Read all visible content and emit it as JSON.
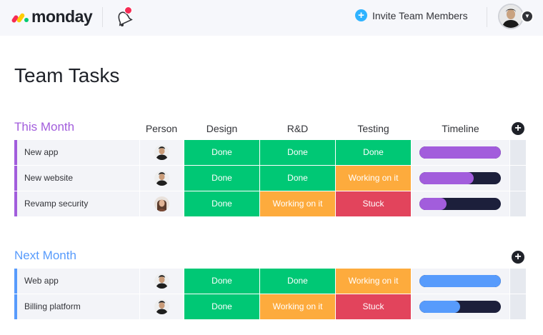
{
  "topbar": {
    "brand": "monday",
    "invite_label": "Invite Team Members"
  },
  "page": {
    "title": "Team Tasks"
  },
  "columns": {
    "person": "Person",
    "design": "Design",
    "rd": "R&D",
    "testing": "Testing",
    "timeline": "Timeline"
  },
  "colors": {
    "done": "#00c875",
    "working": "#fdab3d",
    "stuck": "#e2445c",
    "this_month": "#a25ddc",
    "next_month": "#579bfc",
    "timeline_track": "#1c1f3b"
  },
  "groups": [
    {
      "title": "This Month",
      "color": "#a25ddc",
      "rows": [
        {
          "name": "New app",
          "avatar": "man-avatar-icon",
          "design": "Done",
          "rd": "Done",
          "testing": "Done",
          "timeline_progress": 1.0
        },
        {
          "name": "New website",
          "avatar": "man-avatar-icon",
          "design": "Done",
          "rd": "Done",
          "testing": "Working on it",
          "timeline_progress": 0.67
        },
        {
          "name": "Revamp security",
          "avatar": "woman-avatar-icon",
          "design": "Done",
          "rd": "Working on it",
          "testing": "Stuck",
          "timeline_progress": 0.33
        }
      ]
    },
    {
      "title": "Next Month",
      "color": "#579bfc",
      "rows": [
        {
          "name": "Web app",
          "avatar": "man-avatar-icon",
          "design": "Done",
          "rd": "Done",
          "testing": "Working on it",
          "timeline_progress": 1.0
        },
        {
          "name": "Billing platform",
          "avatar": "man-avatar-icon",
          "design": "Done",
          "rd": "Working on it",
          "testing": "Stuck",
          "timeline_progress": 0.5
        }
      ]
    }
  ]
}
